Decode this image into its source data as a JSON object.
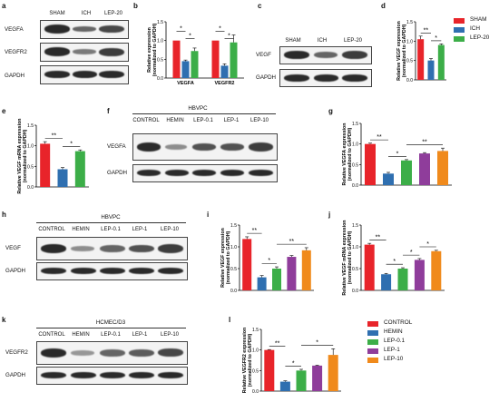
{
  "colors": {
    "SHAM": "#e8242a",
    "ICH": "#2f6fb0",
    "LEP": "#3cae48",
    "CONTROL": "#e8242a",
    "HEMIN": "#2f6fb0",
    "LEP-0.1": "#3cae48",
    "LEP-1": "#8f3d9b",
    "LEP-10": "#f08a1c"
  },
  "legends": {
    "d": [
      "SHAM",
      "ICH",
      "LEP-20"
    ],
    "l": [
      "CONTROL",
      "HEMIN",
      "LEP-0.1",
      "LEP-1",
      "LEP-10"
    ]
  },
  "panels": {
    "a": {
      "label": "a",
      "cols": [
        "SHAM",
        "ICH",
        "LEP-20"
      ],
      "rows": [
        "VEGFA",
        "VEGFR2",
        "GAPDH"
      ]
    },
    "c": {
      "label": "c",
      "cols": [
        "SHAM",
        "ICH",
        "LEP-20"
      ],
      "rows": [
        "VEGF",
        "GAPDH"
      ]
    },
    "f": {
      "label": "f",
      "title": "HBVPC",
      "cols": [
        "CONTROL",
        "HEMIN",
        "LEP-0.1",
        "LEP-1",
        "LEP-10"
      ],
      "rows": [
        "VEGFA",
        "GAPDH"
      ]
    },
    "h": {
      "label": "h",
      "title": "HBVPC",
      "cols": [
        "CONTROL",
        "HEMIN",
        "LEP-0.1",
        "LEP-1",
        "LEP-10"
      ],
      "rows": [
        "VEGF",
        "GAPDH"
      ]
    },
    "k": {
      "label": "k",
      "title": "HCMEC/D3",
      "cols": [
        "CONTROL",
        "HEMIN",
        "LEP-0.1",
        "LEP-1",
        "LEP-10"
      ],
      "rows": [
        "VEGFR2",
        "GAPDH"
      ]
    }
  },
  "chart_data": [
    {
      "id": "b",
      "type": "bar",
      "ylabel": "Relative expression\n(normalized to GAPDH)",
      "ylim": [
        0,
        1.5
      ],
      "yticks": [
        "0.0",
        "0.5",
        "1.0",
        "1.5"
      ],
      "categories": [
        "VEGFA",
        "VEGFR2"
      ],
      "series": [
        {
          "name": "SHAM",
          "values": [
            1.0,
            1.0
          ],
          "err": [
            0.0,
            0.0
          ]
        },
        {
          "name": "ICH",
          "values": [
            0.45,
            0.33
          ],
          "err": [
            0.03,
            0.05
          ]
        },
        {
          "name": "LEP-20",
          "values": [
            0.72,
            0.95
          ],
          "err": [
            0.08,
            0.2
          ]
        }
      ],
      "annotations": [
        "*",
        "*",
        "*",
        "*"
      ]
    },
    {
      "id": "d",
      "type": "bar",
      "ylabel": "Relative VEGF expression\n(normalized to GAPDH)",
      "ylim": [
        0,
        1.5
      ],
      "yticks": [
        "0.0",
        "0.5",
        "1.0",
        "1.5"
      ],
      "categories": [
        "SHAM",
        "ICH",
        "LEP-20"
      ],
      "values": [
        1.05,
        0.5,
        0.9
      ],
      "err": [
        0.08,
        0.05,
        0.03
      ],
      "annotations": [
        "**",
        "*"
      ]
    },
    {
      "id": "e",
      "type": "bar",
      "ylabel": "Relative VEGF mRNA expression\n(normalized to GAPDH)",
      "ylim": [
        0,
        1.5
      ],
      "yticks": [
        "0.0",
        "0.5",
        "1.0",
        "1.5"
      ],
      "categories": [
        "SHAM",
        "ICH",
        "LEP-20"
      ],
      "values": [
        1.05,
        0.43,
        0.87
      ],
      "err": [
        0.05,
        0.04,
        0.03
      ],
      "annotations": [
        "**",
        "*"
      ]
    },
    {
      "id": "g",
      "type": "bar",
      "ylabel": "Relative VEGFA expression\n(normalized to GAPDH)",
      "ylim": [
        0,
        1.5
      ],
      "yticks": [
        "0.0",
        "0.5",
        "1.0",
        "1.5"
      ],
      "categories": [
        "CONTROL",
        "HEMIN",
        "LEP-0.1",
        "LEP-1",
        "LEP-10"
      ],
      "values": [
        1.0,
        0.28,
        0.6,
        0.77,
        0.83
      ],
      "err": [
        0.02,
        0.03,
        0.02,
        0.02,
        0.07
      ],
      "annotations": [
        "**",
        "*",
        "**"
      ]
    },
    {
      "id": "i",
      "type": "bar",
      "ylabel": "Relative VEGF expression\n(normalized to GAPDH)",
      "ylim": [
        0,
        1.5
      ],
      "yticks": [
        "0.0",
        "0.5",
        "1.0",
        "1.5"
      ],
      "categories": [
        "CONTROL",
        "HEMIN",
        "LEP-0.1",
        "LEP-1",
        "LEP-10"
      ],
      "values": [
        1.18,
        0.3,
        0.5,
        0.77,
        0.92
      ],
      "err": [
        0.05,
        0.04,
        0.04,
        0.03,
        0.06
      ],
      "annotations": [
        "**",
        "*",
        "**"
      ]
    },
    {
      "id": "j",
      "type": "bar",
      "ylabel": "Relative VEGF mRNA expression\n(normalized to GAPDH)",
      "ylim": [
        0,
        1.5
      ],
      "yticks": [
        "0.0",
        "0.5",
        "1.0",
        "1.5"
      ],
      "categories": [
        "CONTROL",
        "HEMIN",
        "LEP-0.1",
        "LEP-1",
        "LEP-10"
      ],
      "values": [
        1.05,
        0.37,
        0.5,
        0.7,
        0.9
      ],
      "err": [
        0.03,
        0.02,
        0.02,
        0.03,
        0.02
      ],
      "annotations": [
        "**",
        "*",
        "*",
        "*"
      ]
    },
    {
      "id": "l",
      "type": "bar",
      "ylabel": "Relative VEGFR2 expression\n(normalized to GAPDH)",
      "ylim": [
        0,
        1.5
      ],
      "yticks": [
        "0.0",
        "0.5",
        "1.0",
        "1.5"
      ],
      "categories": [
        "CONTROL",
        "HEMIN",
        "LEP-0.1",
        "LEP-1",
        "LEP-10"
      ],
      "values": [
        1.0,
        0.23,
        0.5,
        0.62,
        0.88
      ],
      "err": [
        0.01,
        0.02,
        0.03,
        0.01,
        0.15
      ],
      "annotations": [
        "**",
        "*",
        "*"
      ]
    }
  ]
}
